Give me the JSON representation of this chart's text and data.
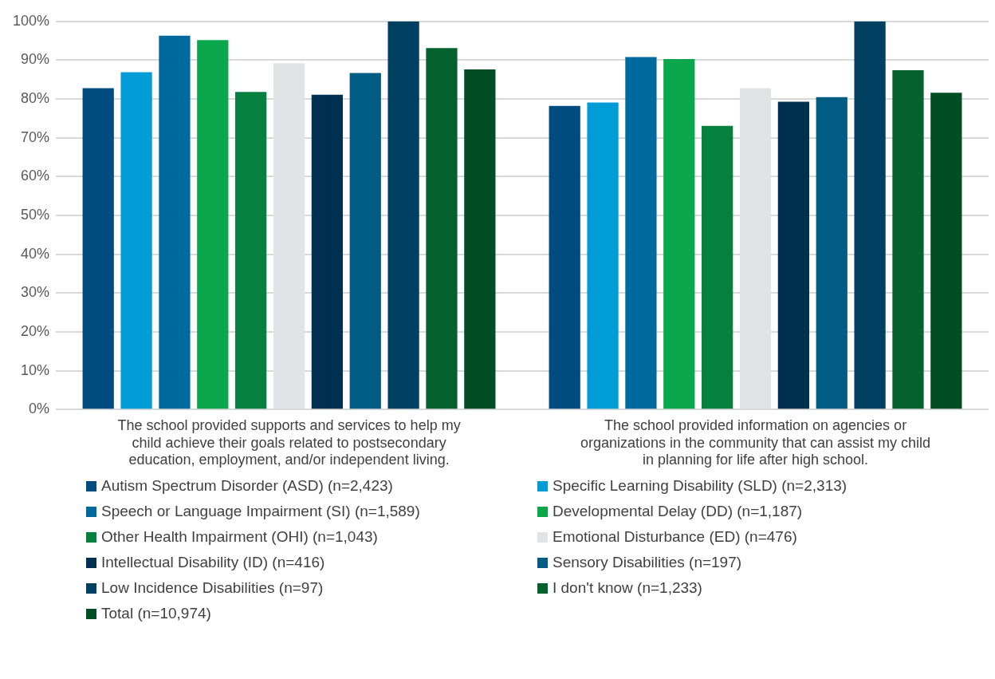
{
  "chart_data": {
    "type": "bar",
    "categories": [
      "The school provided supports and services to help my child achieve their goals related to postsecondary education, employment, and/or independent living.",
      "The school provided information on agencies or organizations in the community that can assist my child in planning for life after high school."
    ],
    "series": [
      {
        "name": "Autism Spectrum Disorder (ASD) (n=2,423)",
        "color": "#004c7f",
        "values": [
          82.8,
          78.2
        ]
      },
      {
        "name": "Specific Learning Disability (SLD) (n=2,313)",
        "color": "#009cd6",
        "values": [
          86.9,
          79.1
        ]
      },
      {
        "name": "Speech or Language Impairment (SI) (n=1,589)",
        "color": "#006a9e",
        "values": [
          96.3,
          90.8
        ]
      },
      {
        "name": "Developmental Delay (DD) (n=1,187)",
        "color": "#0aa74d",
        "values": [
          95.2,
          90.3
        ]
      },
      {
        "name": "Other Health Impairment (OHI) (n=1,043)",
        "color": "#05803f",
        "values": [
          81.8,
          73.1
        ]
      },
      {
        "name": "Emotional Disturbance (ED) (n=476)",
        "color": "#e0e4e7",
        "values": [
          89.2,
          82.8
        ]
      },
      {
        "name": "Intellectual Disability (ID) (n=416)",
        "color": "#00304f",
        "values": [
          81.1,
          79.3
        ]
      },
      {
        "name": "Sensory Disabilities (n=197)",
        "color": "#005c82",
        "values": [
          86.7,
          80.5
        ]
      },
      {
        "name": "Low Incidence Disabilities (n=97)",
        "color": "#014060",
        "values": [
          100,
          100
        ]
      },
      {
        "name": "I don't know (n=1,233)",
        "color": "#05622e",
        "values": [
          93.1,
          87.4
        ]
      },
      {
        "name": "Total (n=10,974)",
        "color": "#034d25",
        "values": [
          87.6,
          81.6
        ]
      }
    ],
    "ylim": [
      0,
      100
    ],
    "yticks": [
      {
        "value": 0,
        "label": "0%"
      },
      {
        "value": 10,
        "label": "10%"
      },
      {
        "value": 20,
        "label": "20%"
      },
      {
        "value": 30,
        "label": "30%"
      },
      {
        "value": 40,
        "label": "40%"
      },
      {
        "value": 50,
        "label": "50%"
      },
      {
        "value": 60,
        "label": "60%"
      },
      {
        "value": 70,
        "label": "70%"
      },
      {
        "value": 80,
        "label": "80%"
      },
      {
        "value": 90,
        "label": "90%"
      },
      {
        "value": 100,
        "label": "100%"
      }
    ],
    "grid": "y",
    "legend": "bottom"
  }
}
